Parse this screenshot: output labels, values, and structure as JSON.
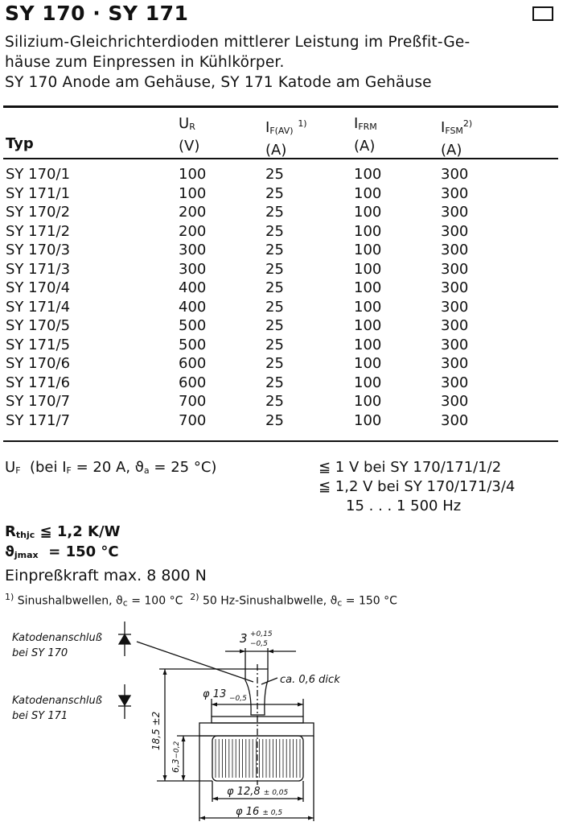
{
  "header": {
    "title": "SY 170 · SY 171",
    "description": [
      "Silizium-Gleichrichterdioden mittlerer Leistung im Preßfit-Ge-",
      "häuse zum Einpressen in Kühlkörper.",
      "SY 170 Anode am Gehäuse, SY 171 Katode am Gehäuse"
    ]
  },
  "table": {
    "columns": [
      {
        "symbol": "",
        "sub": "",
        "note": "",
        "unit": "Typ"
      },
      {
        "symbol": "U",
        "sub": "R",
        "note": "",
        "unit": "(V)"
      },
      {
        "symbol": "I",
        "sub": "F(AV)",
        "note": "1)",
        "unit": "(A)"
      },
      {
        "symbol": "I",
        "sub": "FRM",
        "note": "",
        "unit": "(A)"
      },
      {
        "symbol": "I",
        "sub": "FSM",
        "note": "2)",
        "unit": "(A)"
      }
    ],
    "rows": [
      [
        "SY 170/1",
        "100",
        "25",
        "100",
        "300"
      ],
      [
        "SY 171/1",
        "100",
        "25",
        "100",
        "300"
      ],
      [
        "SY 170/2",
        "200",
        "25",
        "100",
        "300"
      ],
      [
        "SY 171/2",
        "200",
        "25",
        "100",
        "300"
      ],
      [
        "SY 170/3",
        "300",
        "25",
        "100",
        "300"
      ],
      [
        "SY 171/3",
        "300",
        "25",
        "100",
        "300"
      ],
      [
        "SY 170/4",
        "400",
        "25",
        "100",
        "300"
      ],
      [
        "SY 171/4",
        "400",
        "25",
        "100",
        "300"
      ],
      [
        "SY 170/5",
        "500",
        "25",
        "100",
        "300"
      ],
      [
        "SY 171/5",
        "500",
        "25",
        "100",
        "300"
      ],
      [
        "SY 170/6",
        "600",
        "25",
        "100",
        "300"
      ],
      [
        "SY 171/6",
        "600",
        "25",
        "100",
        "300"
      ],
      [
        "SY 170/7",
        "700",
        "25",
        "100",
        "300"
      ],
      [
        "SY 171/7",
        "700",
        "25",
        "100",
        "300"
      ]
    ]
  },
  "specs": {
    "uf_label": "U",
    "uf_sub": "F",
    "uf_cond": "(bei I",
    "uf_cond_sub": "F",
    "uf_cond_rest": " = 20 A, ϑ",
    "uf_cond_sub2": "a",
    "uf_cond_end": " = 25 °C)",
    "uf_values": [
      "≦ 1 V bei SY 170/171/1/2",
      "≦ 1,2 V bei SY 170/171/3/4",
      "15 . . . 1 500 Hz"
    ],
    "rth_label": "R",
    "rth_sub": "thjc",
    "rth_value": "≦ 1,2 K/W",
    "tj_label": "ϑ",
    "tj_sub": "jmax",
    "tj_value": "= 150 °C",
    "force": "Einpreßkraft max. 8 800 N"
  },
  "footnotes": {
    "f1_mark": "1)",
    "f1_text": "Sinushalbwellen, ϑ",
    "f1_sub": "c",
    "f1_end": " = 100 °C",
    "f2_mark": "2)",
    "f2_text": "50 Hz-Sinushalbwelle, ϑ",
    "f2_sub": "c",
    "f2_end": " = 150 °C"
  },
  "drawing": {
    "label_sy170": [
      "Katodenanschluß",
      "bei SY 170"
    ],
    "label_sy171": [
      "Katodenanschluß",
      "bei SY 171"
    ],
    "dim_tab_width": "3",
    "dim_tab_tol_plus": "+0,15",
    "dim_tab_tol_minus": "−0,5",
    "dim_thickness": "ca. 0,6 dick",
    "dim_flange": "φ 13",
    "dim_flange_tol": "−0,5",
    "dim_height": "18,5 ±2",
    "dim_knurl_height": "6,3",
    "dim_knurl_height_tol": "−0,2",
    "dim_knurl_dia": "φ 12,8",
    "dim_knurl_dia_tol": "± 0,05",
    "dim_body_dia": "φ 16",
    "dim_body_dia_tol": "± 0,5"
  }
}
